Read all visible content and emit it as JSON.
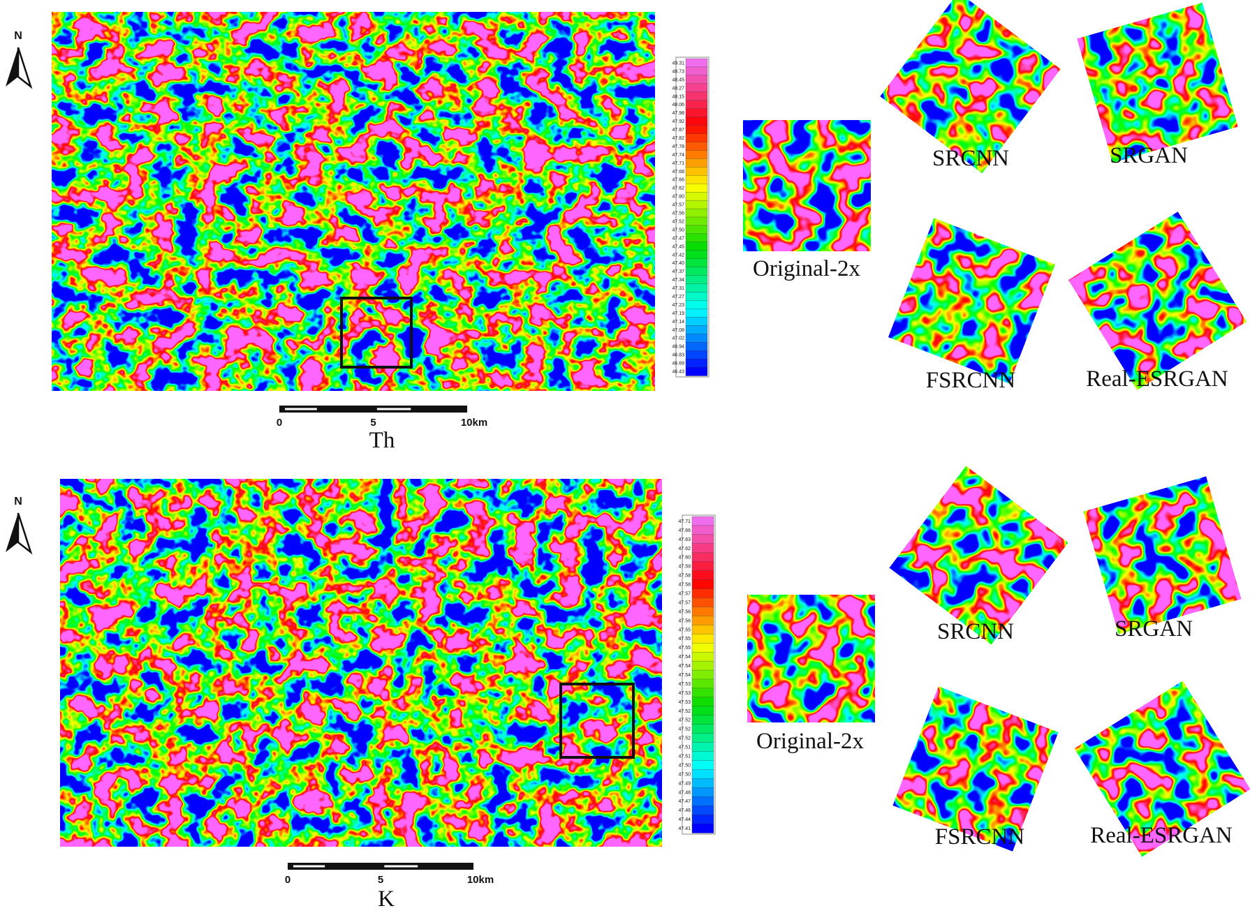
{
  "panels": [
    {
      "compass": "N",
      "scale_labels": [
        "0",
        "5",
        "10km"
      ],
      "label": "Th",
      "colorbar": [
        "49.31",
        "48.73",
        "48.45",
        "48.27",
        "48.15",
        "48.06",
        "47.98",
        "47.92",
        "47.87",
        "47.82",
        "47.78",
        "47.74",
        "47.71",
        "47.68",
        "47.66",
        "47.62",
        "47.60",
        "47.57",
        "47.56",
        "47.52",
        "47.50",
        "47.47",
        "47.45",
        "47.42",
        "47.40",
        "47.37",
        "47.34",
        "47.31",
        "47.27",
        "47.23",
        "47.19",
        "47.14",
        "47.08",
        "47.02",
        "46.94",
        "46.83",
        "46.69",
        "46.43"
      ],
      "insets": [
        "Original-2x",
        "SRCNN",
        "SRGAN",
        "FSRCNN",
        "Real-ESRGAN"
      ]
    },
    {
      "compass": "N",
      "scale_labels": [
        "0",
        "5",
        "10km"
      ],
      "label": "K",
      "colorbar": [
        "47.71",
        "47.66",
        "47.63",
        "47.62",
        "47.60",
        "47.59",
        "47.58",
        "47.58",
        "47.57",
        "47.57",
        "47.56",
        "47.56",
        "47.55",
        "47.55",
        "47.55",
        "47.54",
        "47.54",
        "47.54",
        "47.53",
        "47.53",
        "47.53",
        "47.52",
        "47.52",
        "47.52",
        "47.52",
        "47.51",
        "47.51",
        "47.50",
        "47.50",
        "47.49",
        "47.48",
        "47.47",
        "47.46",
        "47.44",
        "47.41"
      ],
      "insets": [
        "Original-2x",
        "SRCNN",
        "SRGAN",
        "FSRCNN",
        "Real-ESRGAN"
      ]
    }
  ]
}
